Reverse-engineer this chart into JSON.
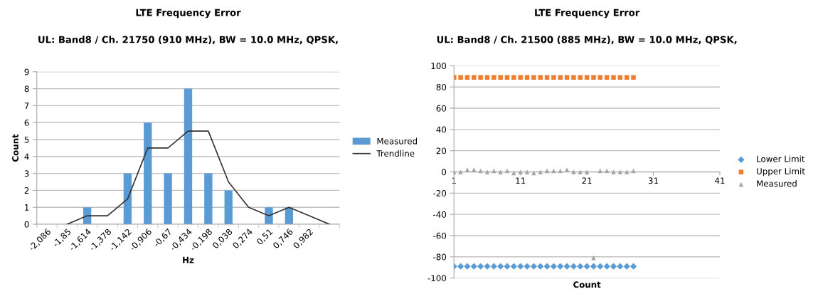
{
  "chart_data": [
    {
      "type": "bar",
      "title": "LTE Frequency Error",
      "subtitle": "UL: Band8 / Ch. 21750 (910 MHz), BW = 10.0 MHz, QPSK,",
      "xlabel": "Hz",
      "ylabel": "Count",
      "categories": [
        "-2,086",
        "-1,85",
        "-1,614",
        "-1,378",
        "-1,142",
        "-0,906",
        "-0,67",
        "-0,434",
        "-0,198",
        "0,038",
        "0,274",
        "0,51",
        "0,746",
        "0,982",
        null
      ],
      "series": [
        {
          "name": "Measured",
          "type": "bar",
          "color": "#5b9bd5",
          "values": [
            0,
            0,
            1,
            0,
            3,
            6,
            3,
            8,
            3,
            2,
            0,
            1,
            1,
            0,
            0
          ]
        },
        {
          "name": "Trendline",
          "type": "line",
          "color": "#333333",
          "values": [
            null,
            0,
            0.5,
            0.5,
            1.5,
            4.5,
            4.5,
            5.5,
            5.5,
            2.5,
            1,
            0.5,
            1,
            0.5,
            0
          ]
        }
      ],
      "ylim": [
        0,
        9
      ],
      "yticks": [
        0,
        1,
        2,
        3,
        4,
        5,
        6,
        7,
        8,
        9
      ],
      "grid": "y",
      "legend": "right"
    },
    {
      "type": "scatter",
      "title": "LTE Frequency Error",
      "subtitle": "UL: Band8 / Ch. 21500 (885 MHz), BW = 10.0 MHz, QPSK,",
      "xlabel": "Count",
      "x": [
        1,
        2,
        3,
        4,
        5,
        6,
        7,
        8,
        9,
        10,
        11,
        12,
        13,
        14,
        15,
        16,
        17,
        18,
        19,
        20,
        21,
        22,
        23,
        24,
        25,
        26,
        27,
        28
      ],
      "series": [
        {
          "name": "Lower Limit",
          "color": "#5b9bd5",
          "marker": "diamond",
          "values": [
            -89,
            -89,
            -89,
            -89,
            -89,
            -89,
            -89,
            -89,
            -89,
            -89,
            -89,
            -89,
            -89,
            -89,
            -89,
            -89,
            -89,
            -89,
            -89,
            -89,
            -89,
            -89,
            -89,
            -89,
            -89,
            -89,
            -89,
            -89
          ]
        },
        {
          "name": "Upper Limit",
          "color": "#ed7d31",
          "marker": "square",
          "values": [
            89,
            89,
            89,
            89,
            89,
            89,
            89,
            89,
            89,
            89,
            89,
            89,
            89,
            89,
            89,
            89,
            89,
            89,
            89,
            89,
            89,
            89,
            89,
            89,
            89,
            89,
            89,
            89
          ]
        },
        {
          "name": "Measured",
          "color": "#a5a5a5",
          "marker": "triangle",
          "values": [
            0,
            0,
            2,
            2,
            1,
            0,
            1,
            0,
            1,
            -1,
            0,
            0,
            -1,
            0,
            1,
            1,
            1,
            2,
            0,
            0,
            0,
            -81,
            1,
            1,
            0,
            0,
            0,
            1
          ]
        }
      ],
      "xlim": [
        1,
        41
      ],
      "xticks": [
        1,
        11,
        21,
        31,
        41
      ],
      "ylim": [
        -100,
        100
      ],
      "yticks": [
        -100,
        -80,
        -60,
        -40,
        -20,
        0,
        20,
        40,
        60,
        80,
        100
      ],
      "grid": "y",
      "legend": "right"
    }
  ]
}
